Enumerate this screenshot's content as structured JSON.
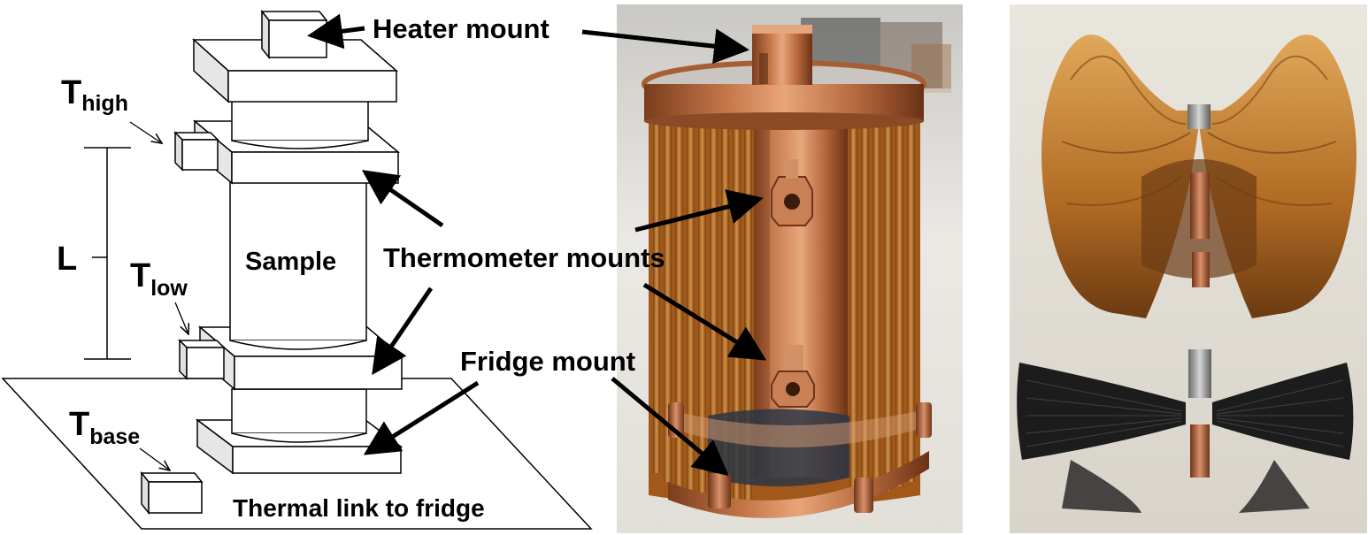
{
  "labels": {
    "heater_mount": "Heater mount",
    "thermometer_mounts": "Thermometer mounts",
    "fridge_mount": "Fridge mount",
    "sample": "Sample",
    "thermal_link": "Thermal link to fridge",
    "length": "L",
    "t_high_main": "T",
    "t_high_sub": "high",
    "t_low_main": "T",
    "t_low_sub": "low",
    "t_base_main": "T",
    "t_base_sub": "base"
  },
  "colors": {
    "copper": "#b8693f",
    "kapton": "#c9862c",
    "kapton_dark": "#8a4f17",
    "black_foil": "#1c1c1c",
    "photo_bg": "#e8e6df"
  }
}
